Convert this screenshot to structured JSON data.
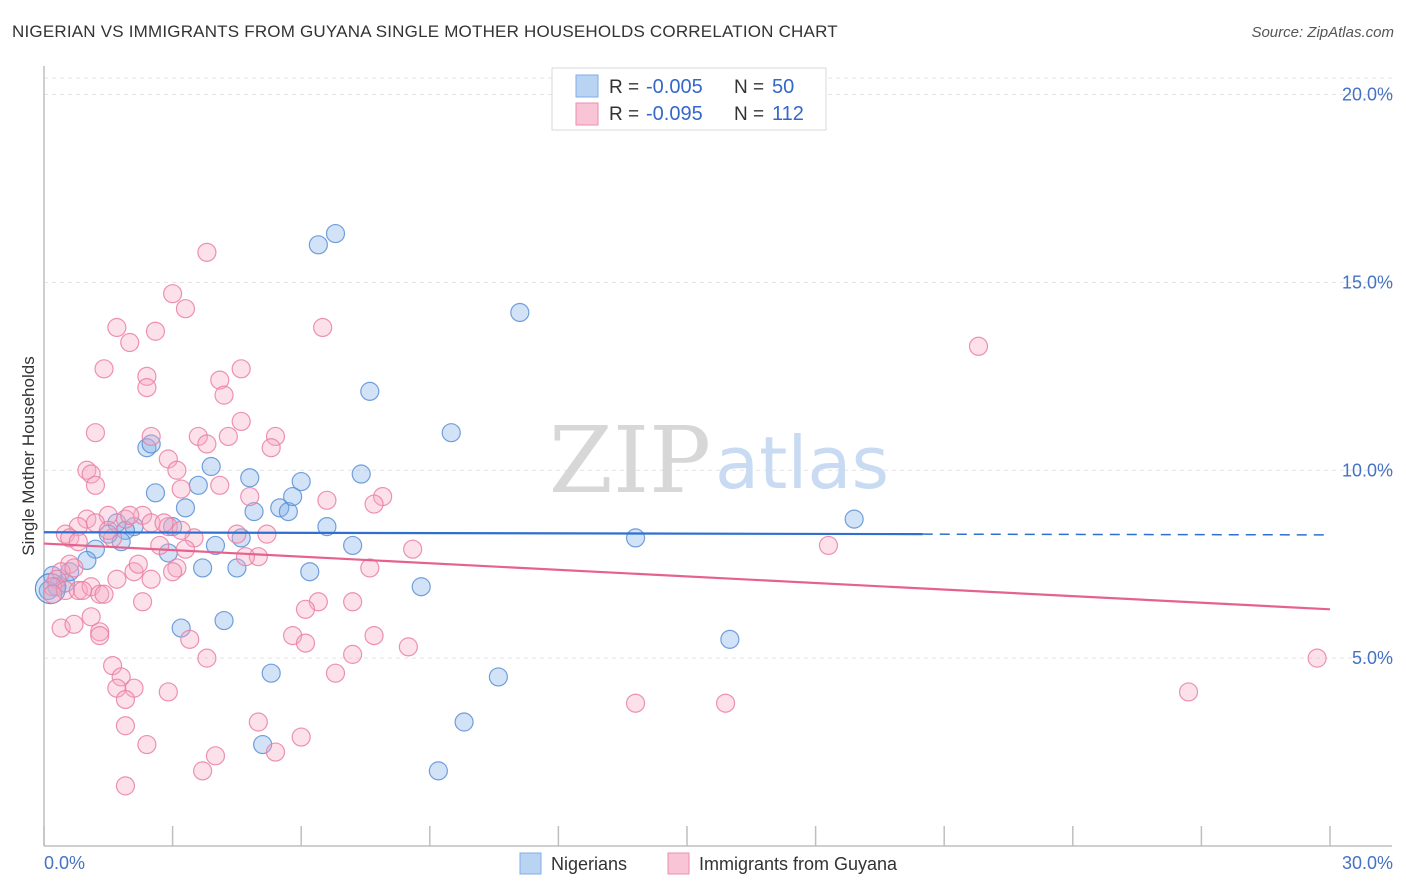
{
  "title": "NIGERIAN VS IMMIGRANTS FROM GUYANA SINGLE MOTHER HOUSEHOLDS CORRELATION CHART",
  "source": "Source: ZipAtlas.com",
  "watermark": {
    "zip": "ZIP",
    "atlas": "atlas"
  },
  "legend": {
    "r_label": "R =",
    "n_label": "N =",
    "rows": [
      {
        "r": "-0.005",
        "n": "50"
      },
      {
        "r": "-0.095",
        "n": "112"
      }
    ]
  },
  "chart_data": {
    "type": "scatter",
    "xlabel": "",
    "ylabel": "Single Mother Households",
    "xlim": [
      0,
      30
    ],
    "ylim": [
      0,
      20.6
    ],
    "x_tick_labels": [
      "0.0%",
      "30.0%"
    ],
    "y_ticks": [
      5,
      10,
      15,
      20
    ],
    "y_tick_labels": [
      "5.0%",
      "10.0%",
      "15.0%",
      "20.0%"
    ],
    "grid": true,
    "legend_position": "top-center",
    "series": [
      {
        "name": "Nigerians",
        "color": "#7faee8",
        "stroke": "#5b8fd6",
        "trend": {
          "x0": 0,
          "y0": 8.35,
          "x1": 20.5,
          "y1": 8.3,
          "dash_to": 30,
          "dash_y": 8.28,
          "color": "#2f6fd0"
        },
        "points": [
          [
            6.4,
            16.0
          ],
          [
            6.8,
            16.3
          ],
          [
            11.1,
            14.2
          ],
          [
            7.6,
            12.1
          ],
          [
            9.5,
            11.0
          ],
          [
            2.4,
            10.6
          ],
          [
            2.5,
            10.7
          ],
          [
            3.9,
            10.1
          ],
          [
            2.6,
            9.4
          ],
          [
            4.8,
            9.8
          ],
          [
            3.6,
            9.6
          ],
          [
            7.4,
            9.9
          ],
          [
            6.0,
            9.7
          ],
          [
            3.3,
            9.0
          ],
          [
            5.5,
            9.0
          ],
          [
            5.7,
            8.9
          ],
          [
            4.9,
            8.9
          ],
          [
            5.8,
            9.3
          ],
          [
            2.1,
            8.5
          ],
          [
            3.0,
            8.5
          ],
          [
            1.7,
            8.6
          ],
          [
            1.9,
            8.4
          ],
          [
            1.8,
            8.1
          ],
          [
            6.6,
            8.5
          ],
          [
            4.6,
            8.2
          ],
          [
            4.0,
            8.0
          ],
          [
            7.2,
            8.0
          ],
          [
            13.8,
            8.2
          ],
          [
            18.9,
            8.7
          ],
          [
            1.2,
            7.9
          ],
          [
            2.9,
            7.8
          ],
          [
            1.0,
            7.6
          ],
          [
            3.7,
            7.4
          ],
          [
            4.5,
            7.4
          ],
          [
            6.2,
            7.3
          ],
          [
            0.5,
            7.0
          ],
          [
            0.3,
            6.9
          ],
          [
            0.6,
            7.3
          ],
          [
            0.2,
            7.2
          ],
          [
            0.1,
            6.8
          ],
          [
            8.8,
            6.9
          ],
          [
            4.2,
            6.0
          ],
          [
            3.2,
            5.8
          ],
          [
            16.0,
            5.5
          ],
          [
            5.3,
            4.6
          ],
          [
            10.6,
            4.5
          ],
          [
            9.8,
            3.3
          ],
          [
            5.1,
            2.7
          ],
          [
            9.2,
            2.0
          ],
          [
            1.5,
            8.3
          ]
        ]
      },
      {
        "name": "Immigrants from Guyana",
        "color": "#f5a9c2",
        "stroke": "#ea7fa5",
        "trend": {
          "x0": 0,
          "y0": 8.05,
          "x1": 30,
          "y1": 6.3,
          "color": "#e5628f"
        },
        "points": [
          [
            3.8,
            15.8
          ],
          [
            3.0,
            14.7
          ],
          [
            3.3,
            14.3
          ],
          [
            6.5,
            13.8
          ],
          [
            1.7,
            13.8
          ],
          [
            2.6,
            13.7
          ],
          [
            2.0,
            13.4
          ],
          [
            21.8,
            13.3
          ],
          [
            1.4,
            12.7
          ],
          [
            4.6,
            12.7
          ],
          [
            2.4,
            12.5
          ],
          [
            4.1,
            12.4
          ],
          [
            2.4,
            12.2
          ],
          [
            4.2,
            12.0
          ],
          [
            4.6,
            11.3
          ],
          [
            1.2,
            11.0
          ],
          [
            2.5,
            10.9
          ],
          [
            3.6,
            10.9
          ],
          [
            4.3,
            10.9
          ],
          [
            5.4,
            10.9
          ],
          [
            3.8,
            10.7
          ],
          [
            5.3,
            10.6
          ],
          [
            2.9,
            10.3
          ],
          [
            3.1,
            10.0
          ],
          [
            1.0,
            10.0
          ],
          [
            1.1,
            9.9
          ],
          [
            1.2,
            9.6
          ],
          [
            4.1,
            9.6
          ],
          [
            3.2,
            9.5
          ],
          [
            7.9,
            9.3
          ],
          [
            6.6,
            9.2
          ],
          [
            4.8,
            9.3
          ],
          [
            7.7,
            9.1
          ],
          [
            2.3,
            8.8
          ],
          [
            1.5,
            8.8
          ],
          [
            1.9,
            8.7
          ],
          [
            2.5,
            8.6
          ],
          [
            2.9,
            8.5
          ],
          [
            2.8,
            8.6
          ],
          [
            1.0,
            8.7
          ],
          [
            1.2,
            8.6
          ],
          [
            0.8,
            8.5
          ],
          [
            0.5,
            8.3
          ],
          [
            0.6,
            8.2
          ],
          [
            0.8,
            8.1
          ],
          [
            1.6,
            8.2
          ],
          [
            4.5,
            8.3
          ],
          [
            5.2,
            8.3
          ],
          [
            3.5,
            8.2
          ],
          [
            2.7,
            8.0
          ],
          [
            3.3,
            7.9
          ],
          [
            8.6,
            7.9
          ],
          [
            18.3,
            8.0
          ],
          [
            5.0,
            7.7
          ],
          [
            3.1,
            7.4
          ],
          [
            2.1,
            7.3
          ],
          [
            2.2,
            7.5
          ],
          [
            3.0,
            7.3
          ],
          [
            7.6,
            7.4
          ],
          [
            0.6,
            7.5
          ],
          [
            0.4,
            7.3
          ],
          [
            0.7,
            7.4
          ],
          [
            0.3,
            7.1
          ],
          [
            0.2,
            6.9
          ],
          [
            0.5,
            6.8
          ],
          [
            0.8,
            6.8
          ],
          [
            1.1,
            6.9
          ],
          [
            1.7,
            7.1
          ],
          [
            2.5,
            7.1
          ],
          [
            1.3,
            6.7
          ],
          [
            1.4,
            6.7
          ],
          [
            0.9,
            6.8
          ],
          [
            6.4,
            6.5
          ],
          [
            7.2,
            6.5
          ],
          [
            2.3,
            6.5
          ],
          [
            6.1,
            6.3
          ],
          [
            1.1,
            6.1
          ],
          [
            0.4,
            5.8
          ],
          [
            0.7,
            5.9
          ],
          [
            1.3,
            5.7
          ],
          [
            1.3,
            5.6
          ],
          [
            5.8,
            5.6
          ],
          [
            6.1,
            5.4
          ],
          [
            3.4,
            5.5
          ],
          [
            7.7,
            5.6
          ],
          [
            8.5,
            5.3
          ],
          [
            7.2,
            5.1
          ],
          [
            3.8,
            5.0
          ],
          [
            29.7,
            5.0
          ],
          [
            1.6,
            4.8
          ],
          [
            1.8,
            4.5
          ],
          [
            6.8,
            4.6
          ],
          [
            1.7,
            4.2
          ],
          [
            2.1,
            4.2
          ],
          [
            2.9,
            4.1
          ],
          [
            1.9,
            3.9
          ],
          [
            26.7,
            4.1
          ],
          [
            13.8,
            3.8
          ],
          [
            15.9,
            3.8
          ],
          [
            5.0,
            3.3
          ],
          [
            1.9,
            3.2
          ],
          [
            6.0,
            2.9
          ],
          [
            2.4,
            2.7
          ],
          [
            4.0,
            2.4
          ],
          [
            5.4,
            2.5
          ],
          [
            3.7,
            2.0
          ],
          [
            1.9,
            1.6
          ],
          [
            0.2,
            6.7
          ],
          [
            1.5,
            8.4
          ],
          [
            2.0,
            8.8
          ],
          [
            4.7,
            7.7
          ],
          [
            3.2,
            8.4
          ]
        ]
      }
    ]
  }
}
